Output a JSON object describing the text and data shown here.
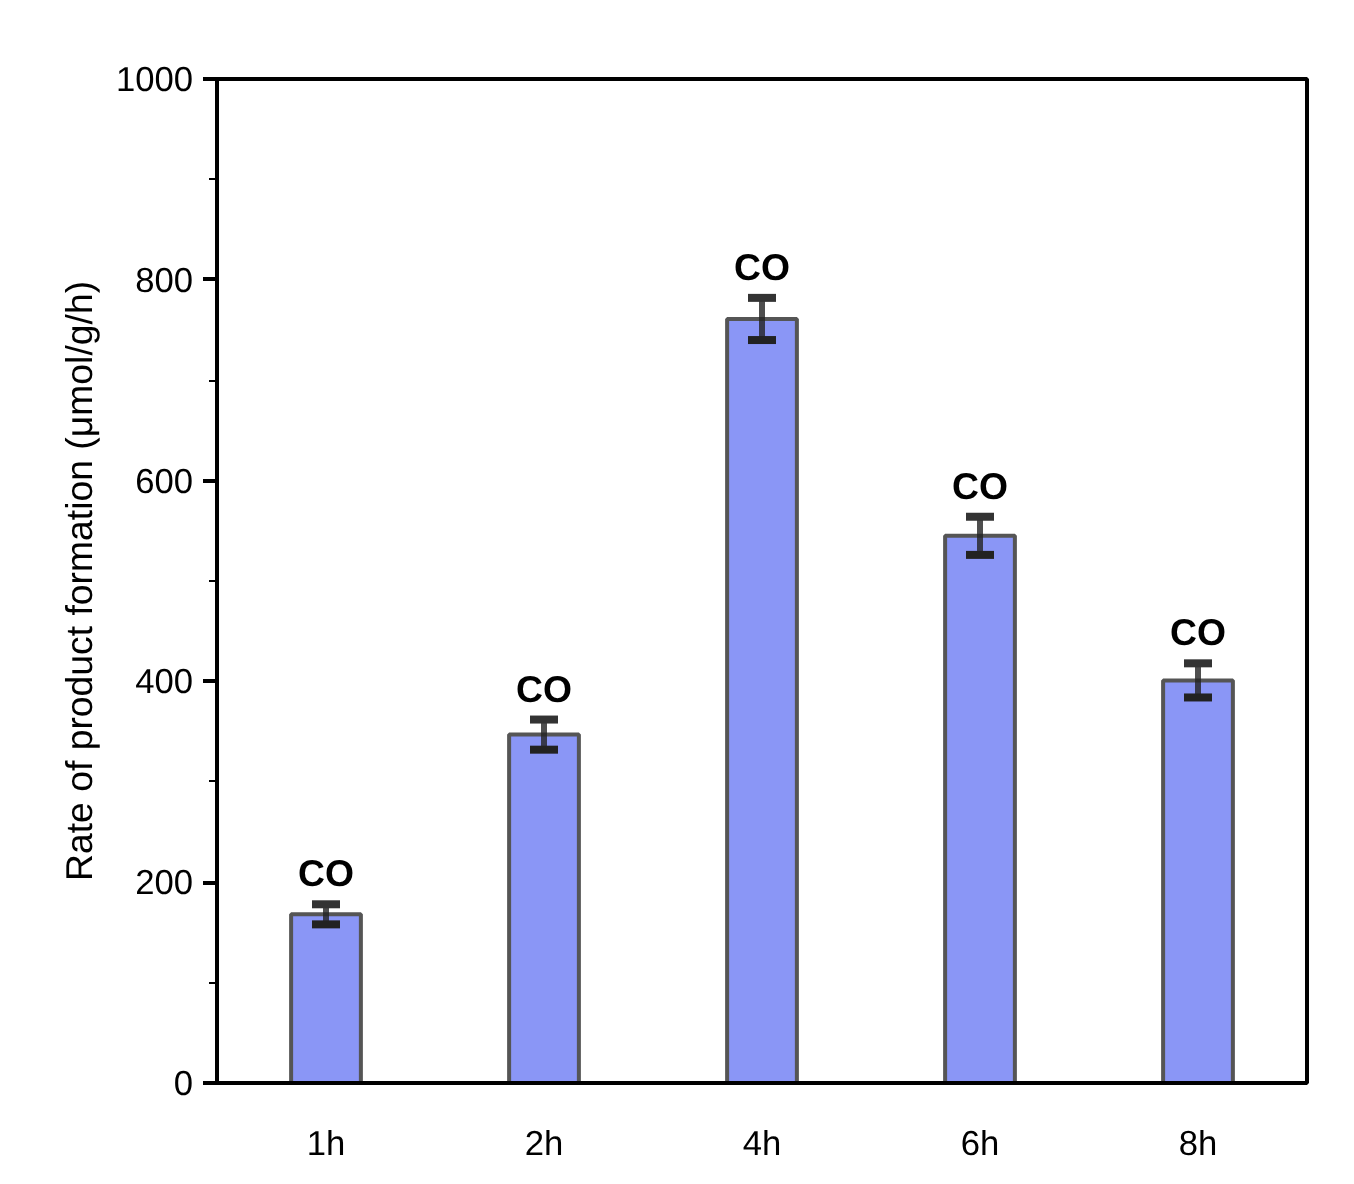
{
  "chart_data": {
    "type": "bar",
    "ylabel": "Rate of product formation (μmol/g/h)",
    "categories": [
      "1h",
      "2h",
      "4h",
      "6h",
      "8h"
    ],
    "values": [
      168,
      347,
      761,
      545,
      401
    ],
    "errors": [
      10,
      15,
      21,
      19,
      17
    ],
    "color": "#8a96f6",
    "ylim": [
      0,
      1000
    ],
    "yticks": [
      0,
      200,
      400,
      600,
      800,
      1000
    ],
    "grid": false,
    "annotations": [
      {
        "text": "CO",
        "x": "1h",
        "y": 178
      },
      {
        "text": "CO",
        "x": "2h",
        "y": 362
      },
      {
        "text": "CO",
        "x": "4h",
        "y": 782
      },
      {
        "text": "CO",
        "x": "6h",
        "y": 564
      },
      {
        "text": "CO",
        "x": "8h",
        "y": 418
      }
    ]
  }
}
